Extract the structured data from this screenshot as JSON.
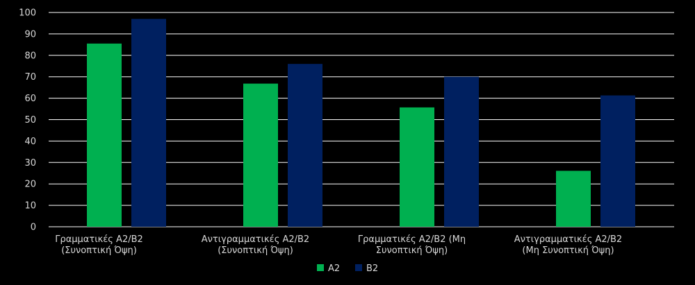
{
  "chart_data": {
    "type": "bar",
    "categories": [
      [
        "Γραμματικές Α2/Β2",
        "(Συνοπτική Όψη)"
      ],
      [
        "Αντιγραμματικές Α2/Β2",
        "(Συνοπτική Όψη)"
      ],
      [
        "Γραμματικές Α2/Β2 (Μη",
        "Συνοπτική Όψη)"
      ],
      [
        "Αντιγραμματικές Α2/Β2",
        "(Μη Συνοπτική Όψη)"
      ]
    ],
    "series": [
      {
        "name": "A2",
        "values": [
          85.5,
          66.8,
          55.7,
          26.1
        ],
        "color": "#00b050"
      },
      {
        "name": "B2",
        "values": [
          97.0,
          76.0,
          70.0,
          61.3
        ],
        "color": "#002060"
      }
    ],
    "ylim": [
      0,
      100
    ],
    "yticks": [
      "0",
      "10",
      "20",
      "30",
      "40",
      "50",
      "60",
      "70",
      "80",
      "90",
      "100"
    ],
    "grid": true,
    "gridColor": "#ffffff",
    "legend_position": "bottom",
    "title": "",
    "xlabel": "",
    "ylabel": ""
  }
}
